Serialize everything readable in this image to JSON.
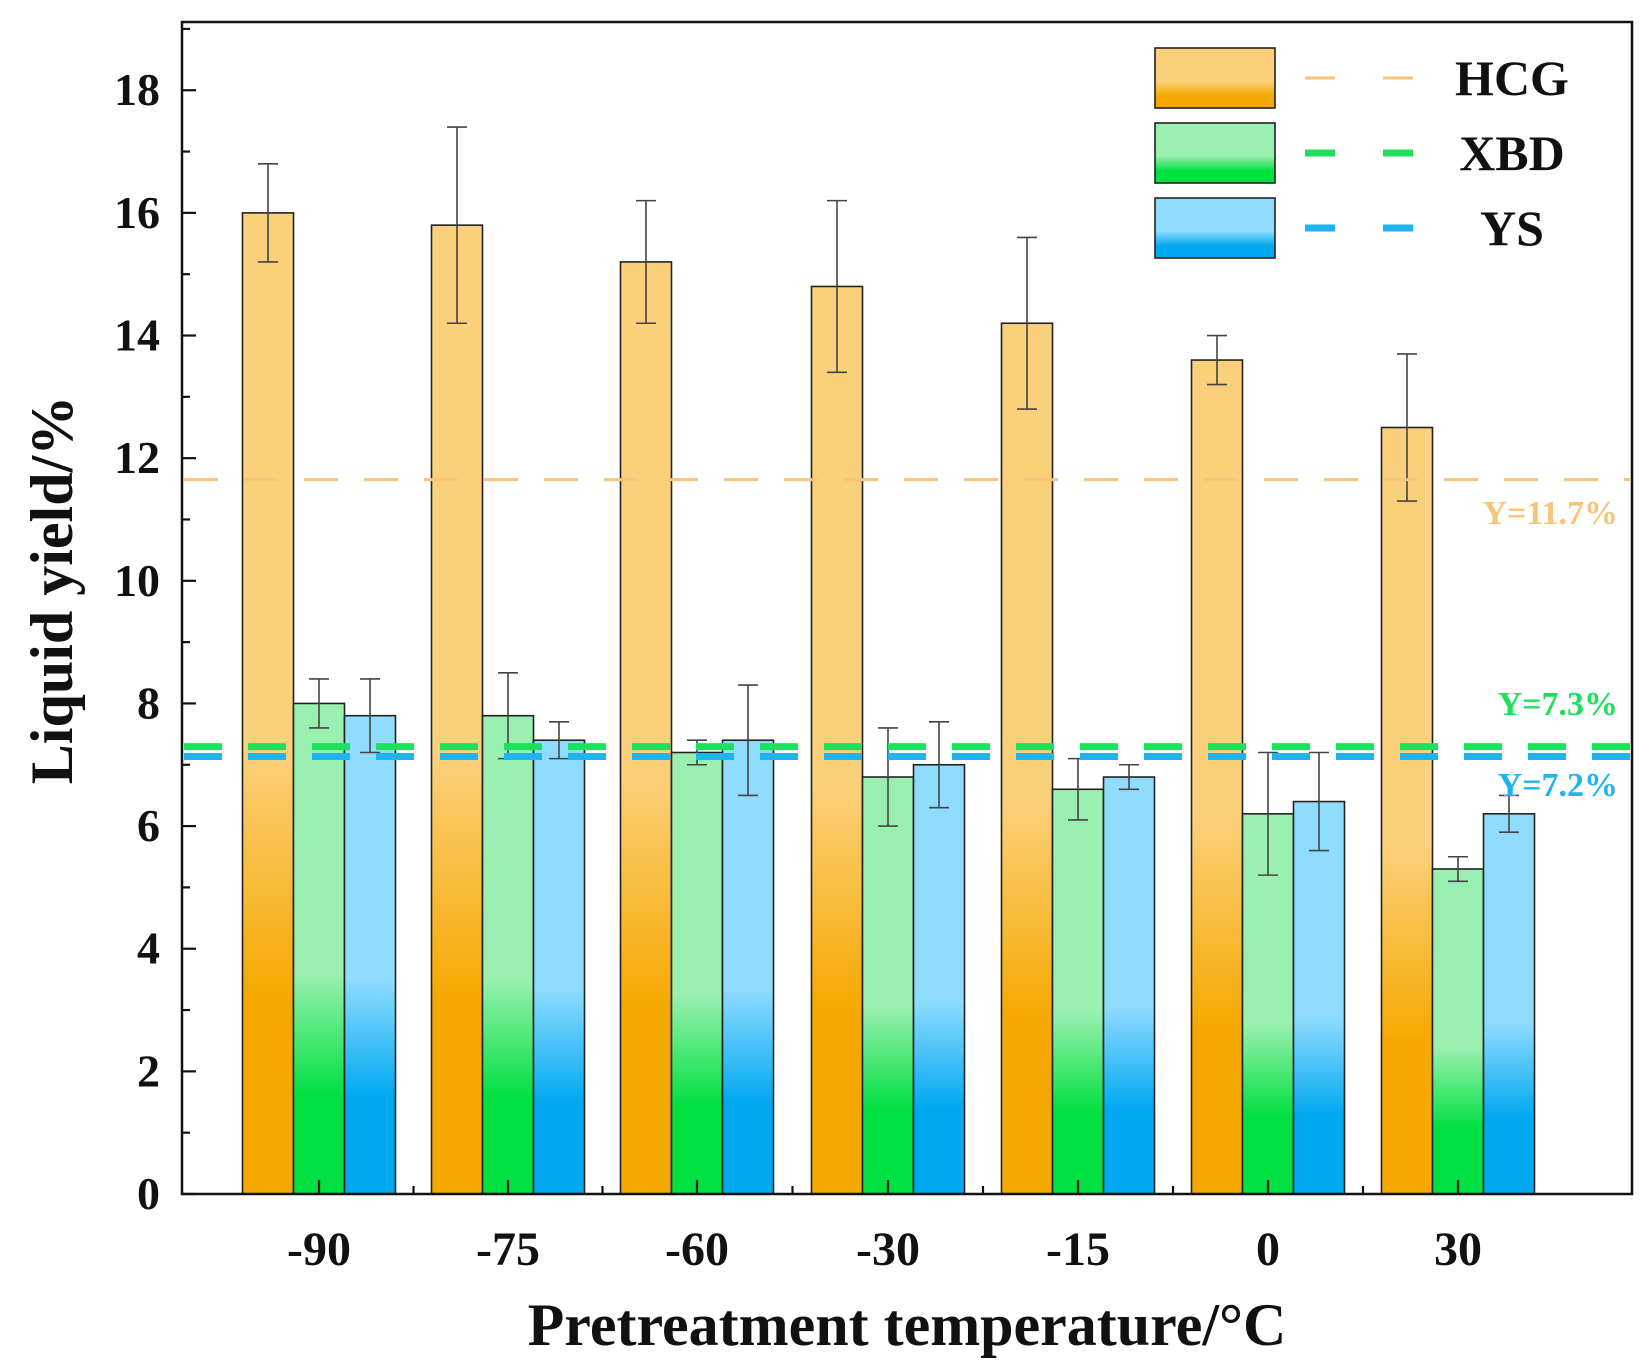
{
  "chart_data": {
    "type": "bar",
    "title": "",
    "xlabel": "Pretreatment temperature/°C",
    "ylabel": "Liquid yield/%",
    "ylim": [
      0,
      19
    ],
    "yticks": [
      0,
      2,
      4,
      6,
      8,
      10,
      12,
      14,
      16,
      18
    ],
    "grid": false,
    "legend_position": "top-right",
    "categories": [
      "-90",
      "-75",
      "-60",
      "-30",
      "-15",
      "0",
      "30"
    ],
    "series": [
      {
        "name": "HCG",
        "color_top": "#fbd07a",
        "color_bottom": "#f5a800",
        "values": [
          16.0,
          15.8,
          15.2,
          14.8,
          14.2,
          13.6,
          12.5
        ],
        "errors": [
          0.8,
          1.6,
          1.0,
          1.4,
          1.4,
          0.4,
          1.2
        ]
      },
      {
        "name": "XBD",
        "color_top": "#9af0b0",
        "color_bottom": "#00e040",
        "values": [
          8.0,
          7.8,
          7.2,
          6.8,
          6.6,
          6.2,
          5.3
        ],
        "errors": [
          0.4,
          0.7,
          0.2,
          0.8,
          0.5,
          1.0,
          0.2
        ]
      },
      {
        "name": "YS",
        "color_top": "#8fdcff",
        "color_bottom": "#00a8f0",
        "values": [
          7.8,
          7.4,
          7.4,
          7.0,
          6.8,
          6.4,
          6.2
        ],
        "errors": [
          0.6,
          0.3,
          0.9,
          0.7,
          0.2,
          0.8,
          0.3
        ]
      }
    ],
    "reference_lines": [
      {
        "series": "HCG",
        "y": 11.65,
        "label": "Y=11.7%",
        "color": "#f8c47a"
      },
      {
        "series": "XBD",
        "y": 7.28,
        "label": "Y=7.3%",
        "color": "#1ee05a"
      },
      {
        "series": "YS",
        "y": 7.2,
        "label": "Y=7.2%",
        "color": "#1eb4f0"
      }
    ]
  }
}
